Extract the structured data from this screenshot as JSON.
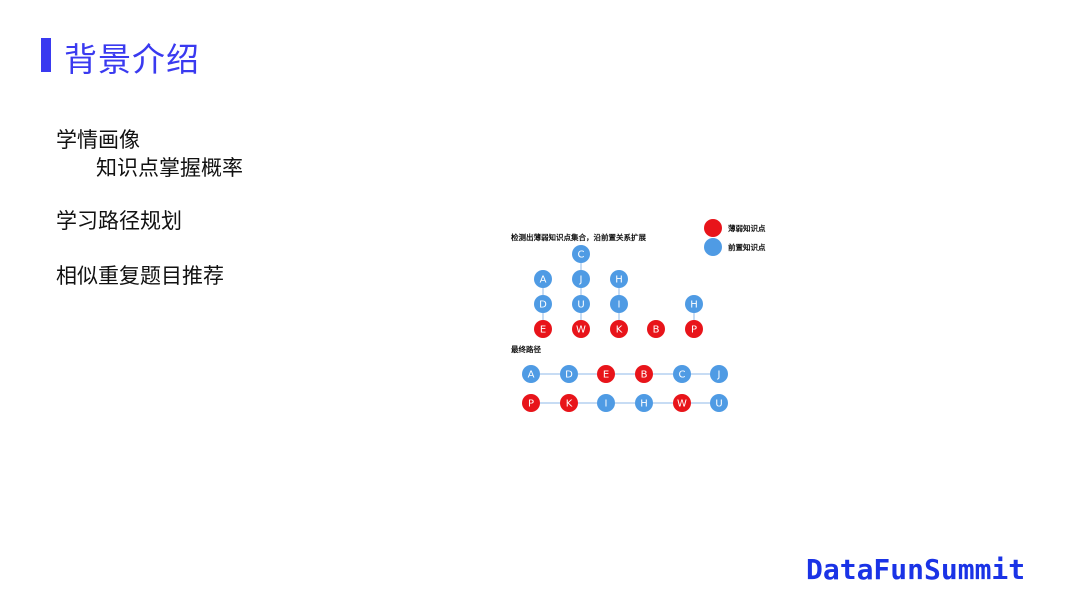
{
  "slide": {
    "title": "背景介绍",
    "bullets": [
      {
        "text": "学情画像",
        "sub": "知识点掌握概率"
      },
      {
        "text": "学习路径规划"
      },
      {
        "text": "相似重复题目推荐"
      }
    ],
    "brand": "DataFunSummit"
  },
  "diagram": {
    "caption_top": "检测出薄弱知识点集合，沿前置关系扩展",
    "caption_bottom": "最终路径",
    "legend": [
      {
        "label": "薄弱知识点",
        "color": "#e8141a"
      },
      {
        "label": "前置知识点",
        "color": "#4f9be4"
      }
    ],
    "colors": {
      "weak": "#e8141a",
      "prereq": "#4f9be4"
    },
    "top_chains": [
      [
        "A",
        "D",
        "E"
      ],
      [
        "C",
        "J",
        "U",
        "W"
      ],
      [
        "H",
        "I",
        "K"
      ],
      [
        "B"
      ],
      [
        "H",
        "P"
      ]
    ],
    "weak_nodes": [
      "E",
      "W",
      "K",
      "B",
      "P"
    ],
    "final_path_row1": [
      "A",
      "D",
      "E",
      "B",
      "C",
      "J"
    ],
    "final_path_row2": [
      "P",
      "K",
      "I",
      "H",
      "W",
      "U"
    ]
  }
}
